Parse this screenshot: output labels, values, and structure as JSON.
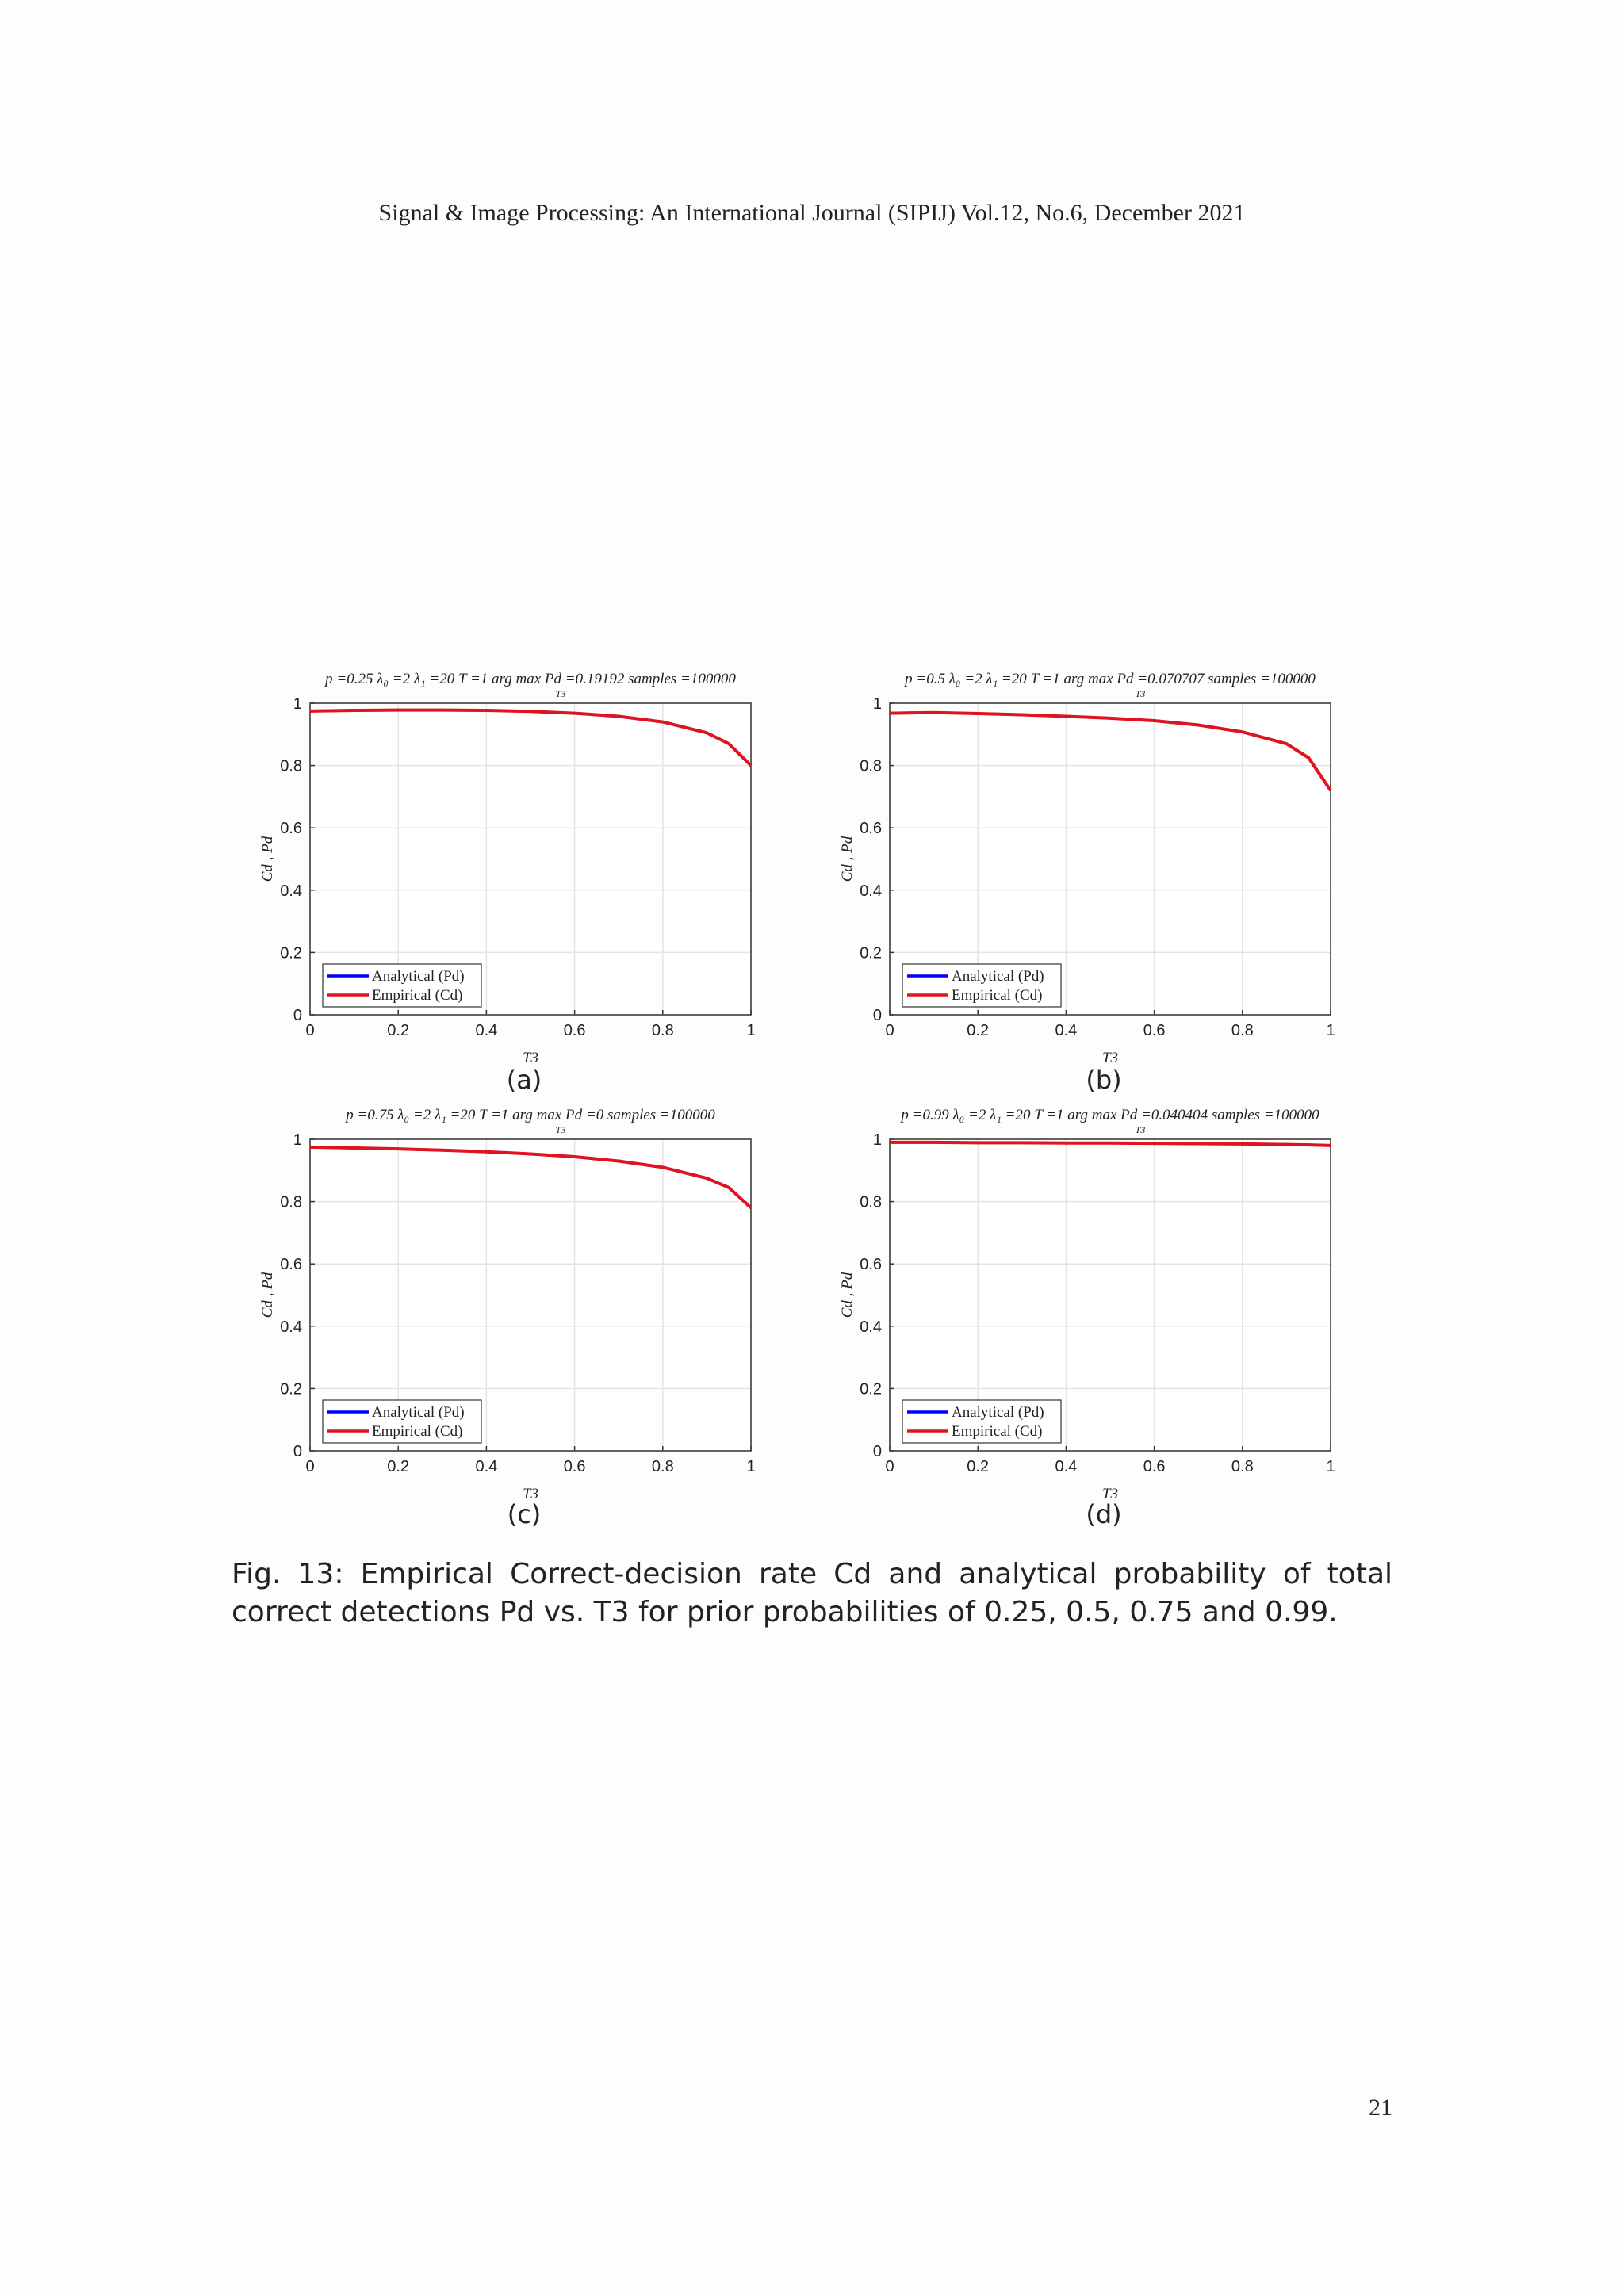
{
  "header": "Signal & Image Processing: An International Journal (SIPIJ) Vol.12, No.6, December 2021",
  "chart_data": [
    {
      "type": "line",
      "title": "p =0.25    λ₀ =2    λ₁ =20    T =1    arg max Pd =0.19192    samples =100000",
      "title_sub": "T3",
      "xlabel": "T3",
      "ylabel": "Cd , Pd",
      "x": [
        0,
        0.1,
        0.2,
        0.3,
        0.4,
        0.5,
        0.6,
        0.7,
        0.8,
        0.9,
        0.95,
        1
      ],
      "series": [
        {
          "name": "Analytical (Pd)",
          "color": "#0000ff",
          "values": [
            0.975,
            0.977,
            0.978,
            0.978,
            0.977,
            0.974,
            0.968,
            0.958,
            0.94,
            0.905,
            0.87,
            0.8
          ]
        },
        {
          "name": "Empirical (Cd)",
          "color": "#e0141e",
          "values": [
            0.975,
            0.977,
            0.978,
            0.978,
            0.977,
            0.974,
            0.968,
            0.958,
            0.94,
            0.905,
            0.87,
            0.8
          ]
        }
      ],
      "xlim": [
        0,
        1
      ],
      "ylim": [
        0,
        1
      ],
      "xticks": [
        0,
        0.2,
        0.4,
        0.6,
        0.8,
        1
      ],
      "yticks": [
        0,
        0.2,
        0.4,
        0.6,
        0.8,
        1
      ],
      "grid": true,
      "legend": "lower-left"
    },
    {
      "type": "line",
      "title": "p =0.5    λ₀ =2    λ₁ =20    T =1    arg max Pd =0.070707    samples =100000",
      "title_sub": "T3",
      "xlabel": "T3",
      "ylabel": "Cd , Pd",
      "x": [
        0,
        0.1,
        0.2,
        0.3,
        0.4,
        0.5,
        0.6,
        0.7,
        0.8,
        0.9,
        0.95,
        1
      ],
      "series": [
        {
          "name": "Analytical (Pd)",
          "color": "#0000ff",
          "values": [
            0.968,
            0.97,
            0.967,
            0.963,
            0.958,
            0.952,
            0.944,
            0.93,
            0.908,
            0.87,
            0.825,
            0.72
          ]
        },
        {
          "name": "Empirical (Cd)",
          "color": "#e0141e",
          "values": [
            0.968,
            0.97,
            0.967,
            0.963,
            0.958,
            0.952,
            0.944,
            0.93,
            0.908,
            0.87,
            0.825,
            0.72
          ]
        }
      ],
      "xlim": [
        0,
        1
      ],
      "ylim": [
        0,
        1
      ],
      "xticks": [
        0,
        0.2,
        0.4,
        0.6,
        0.8,
        1
      ],
      "yticks": [
        0,
        0.2,
        0.4,
        0.6,
        0.8,
        1
      ],
      "grid": true,
      "legend": "lower-left"
    },
    {
      "type": "line",
      "title": "p =0.75    λ₀ =2    λ₁ =20    T =1    arg max Pd =0    samples =100000",
      "title_sub": "T3",
      "xlabel": "T3",
      "ylabel": "Cd , Pd",
      "x": [
        0,
        0.1,
        0.2,
        0.3,
        0.4,
        0.5,
        0.6,
        0.7,
        0.8,
        0.9,
        0.95,
        1
      ],
      "series": [
        {
          "name": "Analytical (Pd)",
          "color": "#0000ff",
          "values": [
            0.975,
            0.972,
            0.969,
            0.965,
            0.96,
            0.953,
            0.944,
            0.93,
            0.91,
            0.875,
            0.845,
            0.78
          ]
        },
        {
          "name": "Empirical (Cd)",
          "color": "#e0141e",
          "values": [
            0.975,
            0.972,
            0.969,
            0.965,
            0.96,
            0.953,
            0.944,
            0.93,
            0.91,
            0.875,
            0.845,
            0.78
          ]
        }
      ],
      "xlim": [
        0,
        1
      ],
      "ylim": [
        0,
        1
      ],
      "xticks": [
        0,
        0.2,
        0.4,
        0.6,
        0.8,
        1
      ],
      "yticks": [
        0,
        0.2,
        0.4,
        0.6,
        0.8,
        1
      ],
      "grid": true,
      "legend": "lower-left"
    },
    {
      "type": "line",
      "title": "p =0.99    λ₀ =2    λ₁ =20    T =1    arg max Pd =0.040404    samples =100000",
      "title_sub": "T3",
      "xlabel": "T3",
      "ylabel": "Cd , Pd",
      "x": [
        0,
        0.1,
        0.2,
        0.3,
        0.4,
        0.5,
        0.6,
        0.7,
        0.8,
        0.9,
        0.95,
        1
      ],
      "series": [
        {
          "name": "Analytical (Pd)",
          "color": "#0000ff",
          "values": [
            0.99,
            0.99,
            0.989,
            0.989,
            0.988,
            0.988,
            0.987,
            0.986,
            0.985,
            0.983,
            0.982,
            0.98
          ]
        },
        {
          "name": "Empirical (Cd)",
          "color": "#e0141e",
          "values": [
            0.99,
            0.99,
            0.989,
            0.989,
            0.988,
            0.988,
            0.987,
            0.986,
            0.985,
            0.983,
            0.982,
            0.98
          ]
        }
      ],
      "xlim": [
        0,
        1
      ],
      "ylim": [
        0,
        1
      ],
      "xticks": [
        0,
        0.2,
        0.4,
        0.6,
        0.8,
        1
      ],
      "yticks": [
        0,
        0.2,
        0.4,
        0.6,
        0.8,
        1
      ],
      "grid": true,
      "legend": "lower-left"
    }
  ],
  "subcaptions": [
    "(a)",
    "(b)",
    "(c)",
    "(d)"
  ],
  "caption": "Fig. 13: Empirical Correct-decision rate Cd and analytical probability of total correct detections Pd vs. T3 for prior probabilities of 0.25, 0.5, 0.75 and 0.99.",
  "page_number": "21"
}
